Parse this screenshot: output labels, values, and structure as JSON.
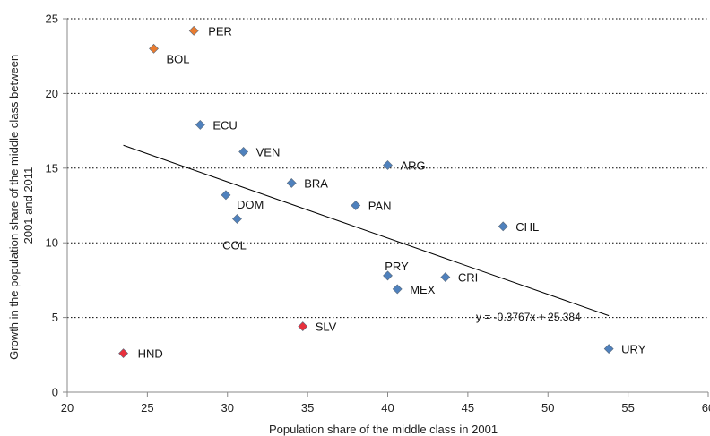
{
  "chart_data": {
    "type": "scatter",
    "xlabel": "Population  share of the middle class in 2001",
    "ylabel_lines": [
      "Growth in the population  share of the middle class between",
      "2001 and 2011"
    ],
    "xlim": [
      20,
      60
    ],
    "ylim": [
      0,
      25
    ],
    "x_ticks": [
      "20",
      "25",
      "30",
      "35",
      "40",
      "45",
      "50",
      "55",
      "60"
    ],
    "y_ticks": [
      "0",
      "5",
      "10",
      "15",
      "20",
      "25"
    ],
    "grid": "horizontal dotted",
    "points": [
      {
        "label": "PER",
        "x": 27.9,
        "y": 24.2,
        "color": "#E97C30"
      },
      {
        "label": "BOL",
        "x": 25.4,
        "y": 23.0,
        "color": "#E97C30"
      },
      {
        "label": "ECU",
        "x": 28.3,
        "y": 17.9,
        "color": "#4F81BD"
      },
      {
        "label": "VEN",
        "x": 31.0,
        "y": 16.1,
        "color": "#4F81BD"
      },
      {
        "label": "ARG",
        "x": 40.0,
        "y": 15.2,
        "color": "#4F81BD"
      },
      {
        "label": "BRA",
        "x": 34.0,
        "y": 14.0,
        "color": "#4F81BD"
      },
      {
        "label": "DOM",
        "x": 29.9,
        "y": 13.2,
        "color": "#4F81BD"
      },
      {
        "label": "PAN",
        "x": 38.0,
        "y": 12.5,
        "color": "#4F81BD"
      },
      {
        "label": "COL",
        "x": 30.6,
        "y": 11.6,
        "color": "#4F81BD"
      },
      {
        "label": "CHL",
        "x": 47.2,
        "y": 11.1,
        "color": "#4F81BD"
      },
      {
        "label": "PRY",
        "x": 40.0,
        "y": 7.8,
        "color": "#4F81BD"
      },
      {
        "label": "CRI",
        "x": 43.6,
        "y": 7.7,
        "color": "#4F81BD"
      },
      {
        "label": "MEX",
        "x": 40.6,
        "y": 6.9,
        "color": "#4F81BD"
      },
      {
        "label": "SLV",
        "x": 34.7,
        "y": 4.4,
        "color": "#E8303C"
      },
      {
        "label": "HND",
        "x": 23.5,
        "y": 2.6,
        "color": "#E8303C"
      },
      {
        "label": "URY",
        "x": 53.8,
        "y": 2.9,
        "color": "#4F81BD"
      }
    ],
    "trendline": {
      "slope": -0.3767,
      "intercept": 25.384,
      "x_start": 23.5,
      "x_end": 53.8,
      "equation": "y = -0.3767x + 25.384"
    }
  }
}
